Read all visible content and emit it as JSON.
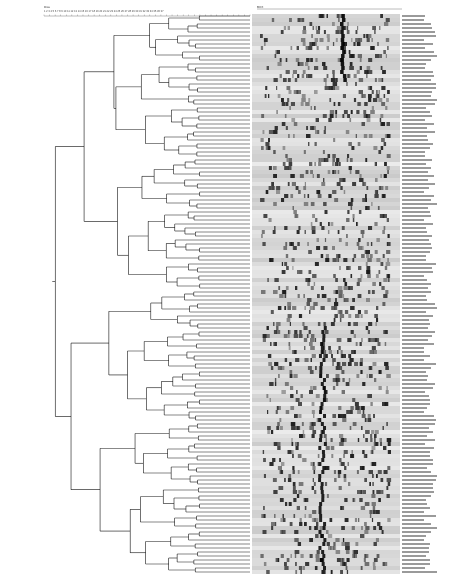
{
  "figure": {
    "header_left": "Dice",
    "header_right": "BOX",
    "scale_tick_labels": "1 2 3 4 5 6 7 8 9 10 11 12 13 14 15 16 17 18 19 20 21 22 23 24 25 26 27 28 29 30 31 32 33 34 35 36 37",
    "dendrogram_lines": "black",
    "gel_background": "#eaeaea",
    "band_color": "#1a1a1a",
    "lane_label_count": 140,
    "lane_labels_legible": false
  }
}
